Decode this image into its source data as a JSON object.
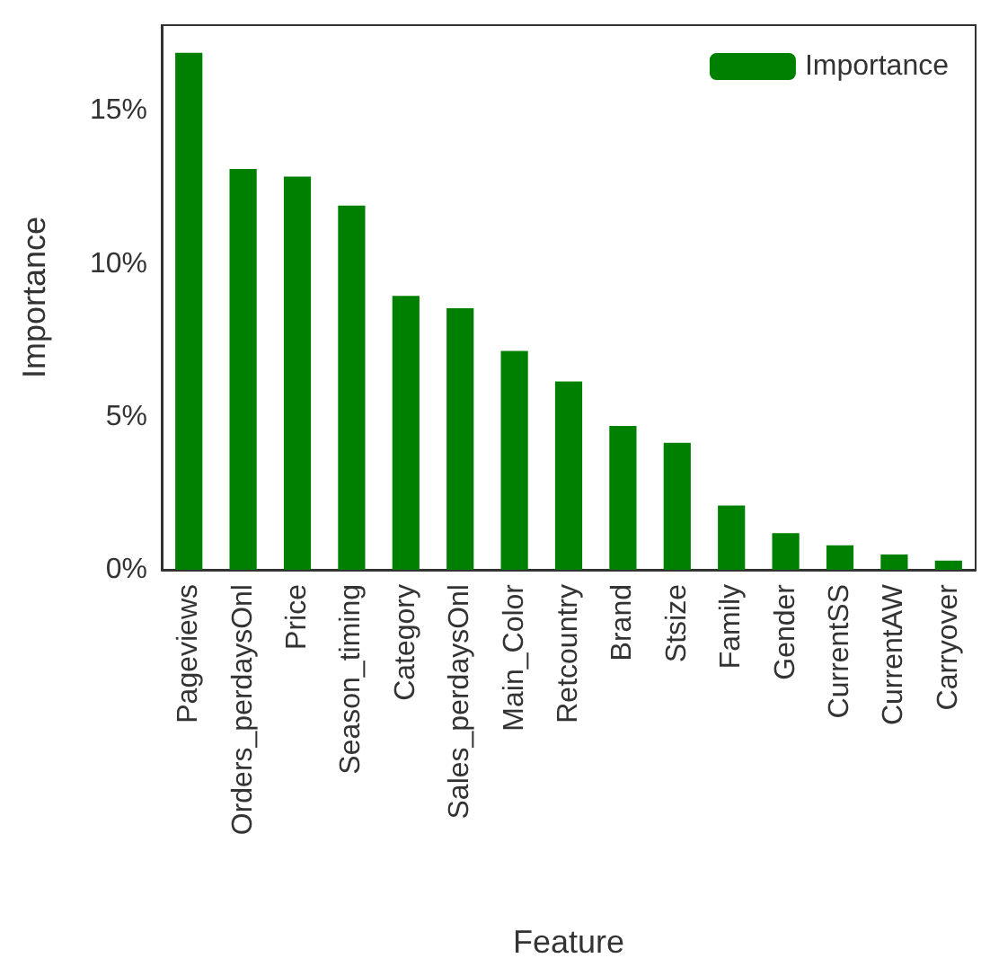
{
  "chart_data": {
    "type": "bar",
    "xlabel": "Feature",
    "ylabel": "Importance",
    "categories": [
      "Pageviews",
      "Orders_perdaysOnl",
      "Price",
      "Season_timing",
      "Category",
      "Sales_perdaysOnl",
      "Main_Color",
      "Retcountry",
      "Brand",
      "Stsize",
      "Family",
      "Gender",
      "CurrentSS",
      "CurrentAW",
      "Carryover"
    ],
    "series": [
      {
        "name": "Importance",
        "color": "#008000",
        "values": [
          16.9,
          13.1,
          12.85,
          11.9,
          8.95,
          8.55,
          7.15,
          6.15,
          4.7,
          4.15,
          2.1,
          1.2,
          0.8,
          0.5,
          0.3
        ]
      }
    ],
    "ylim": [
      0,
      17.8
    ],
    "yticks": [
      {
        "value": 0,
        "label": "0%"
      },
      {
        "value": 5,
        "label": "5%"
      },
      {
        "value": 10,
        "label": "10%"
      },
      {
        "value": 15,
        "label": "15%"
      }
    ],
    "grid": false,
    "legend": "top right"
  }
}
